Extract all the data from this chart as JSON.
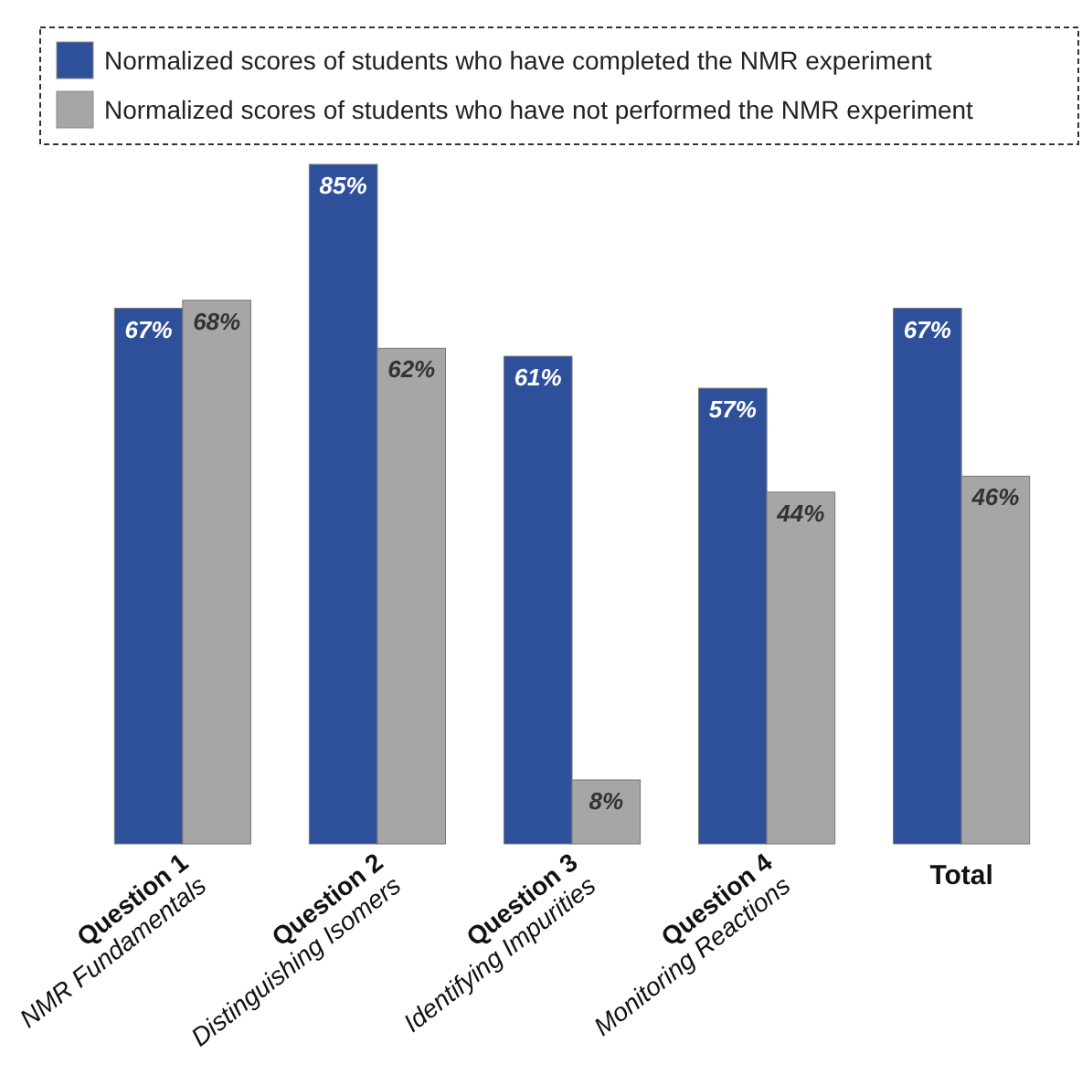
{
  "chart_data": {
    "type": "bar",
    "categories": [
      "Question 1\nNMR Fundamentals",
      "Question 2\nDistinguishing Isomers",
      "Question 3\nIdentifying Impurities",
      "Question 4\nMonitoring Reactions",
      "Total"
    ],
    "series": [
      {
        "name": "Normalized scores of students who have completed the NMR experiment",
        "color": "#2e4f9a",
        "values": [
          67,
          85,
          61,
          57,
          67
        ],
        "value_labels": [
          "67%",
          "85%",
          "61%",
          "57%",
          "67%"
        ]
      },
      {
        "name": "Normalized scores of students who have not performed the NMR experiment",
        "color": "#a6a6a6",
        "values": [
          68,
          62,
          8,
          44,
          46
        ],
        "value_labels": [
          "68%",
          "62%",
          "8%",
          "44%",
          "46%"
        ]
      }
    ],
    "legend": "top"
  }
}
